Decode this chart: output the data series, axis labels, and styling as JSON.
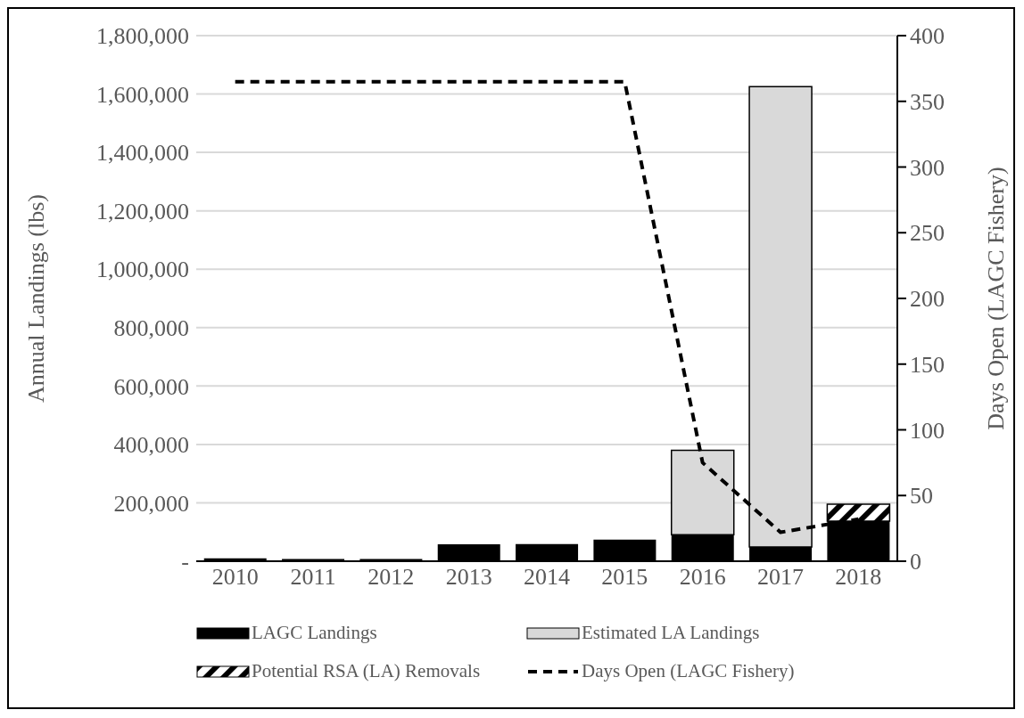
{
  "chart_data": {
    "type": "bar",
    "stacked": true,
    "categories": [
      "2010",
      "2011",
      "2012",
      "2013",
      "2014",
      "2015",
      "2016",
      "2017",
      "2018"
    ],
    "ylabel": "Annual Landings (lbs)",
    "y2label": "Days Open (LAGC Fishery)",
    "series": [
      {
        "name": "LAGC Landings",
        "color": "#000000",
        "values": [
          10000,
          8000,
          8000,
          58000,
          59000,
          74000,
          91000,
          49000,
          137000
        ]
      },
      {
        "name": "Estimated LA Landings",
        "color": "#d9d9d9",
        "values": [
          null,
          null,
          null,
          null,
          null,
          null,
          289000,
          1576000,
          null
        ]
      },
      {
        "name": "Potential RSA (LA) Removals",
        "color": "#000000",
        "values": [
          null,
          null,
          null,
          null,
          null,
          null,
          null,
          null,
          58000
        ]
      },
      {
        "name": "Days Open (LAGC Fishery)",
        "type": "line",
        "axis": "y2",
        "color": "#000000",
        "line_style": "dashed",
        "marker": "none",
        "values": [
          365,
          365,
          365,
          365,
          365,
          365,
          75,
          22,
          32
        ]
      }
    ],
    "ylim": [
      0,
      1800000
    ],
    "yticks": [
      {
        "value": 0,
        "label": "-"
      },
      {
        "value": 200000,
        "label": "200,000"
      },
      {
        "value": 400000,
        "label": "400,000"
      },
      {
        "value": 600000,
        "label": "600,000"
      },
      {
        "value": 800000,
        "label": "800,000"
      },
      {
        "value": 1000000,
        "label": "1,000,000"
      },
      {
        "value": 1200000,
        "label": "1,200,000"
      },
      {
        "value": 1400000,
        "label": "1,400,000"
      },
      {
        "value": 1600000,
        "label": "1,600,000"
      },
      {
        "value": 1800000,
        "label": "1,800,000"
      }
    ],
    "y2lim": [
      0,
      400
    ],
    "y2ticks": [
      0,
      50,
      100,
      150,
      200,
      250,
      300,
      350,
      400
    ],
    "grid": "y",
    "legend": "bottom"
  }
}
